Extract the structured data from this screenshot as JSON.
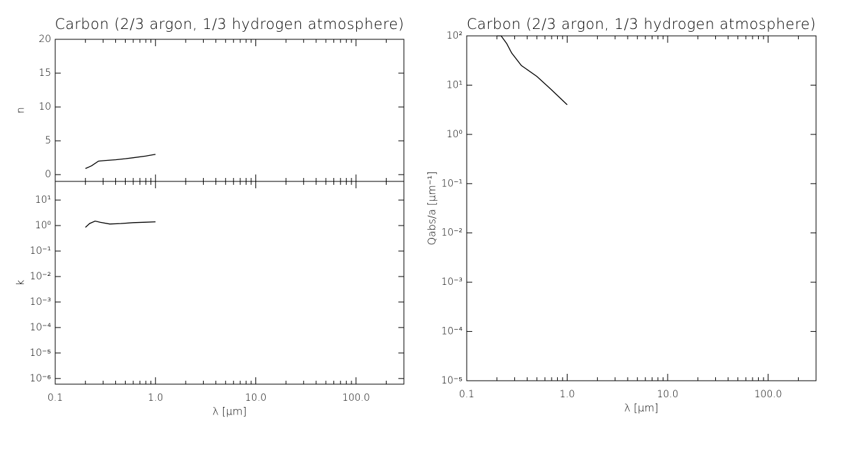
{
  "chart_data": [
    {
      "type": "line",
      "title": "Carbon (2/3 argon, 1/3 hydrogen atmosphere)",
      "ylabel": "n",
      "xscale": "log",
      "yscale": "linear",
      "xlim": [
        0.1,
        300
      ],
      "ylim": [
        -1,
        20
      ],
      "yticks": [
        0,
        5,
        10,
        15,
        20
      ],
      "color": "#000000",
      "x": [
        0.2,
        0.23,
        0.27,
        0.32,
        0.4,
        0.5,
        0.6,
        0.8,
        1.0
      ],
      "values": [
        0.9,
        1.3,
        2.0,
        2.1,
        2.2,
        2.35,
        2.5,
        2.75,
        3.0
      ]
    },
    {
      "type": "line",
      "xlabel": "λ [μm]",
      "ylabel": "k",
      "xscale": "log",
      "yscale": "log",
      "xlim": [
        0.1,
        300
      ],
      "ylim": [
        6e-07,
        54
      ],
      "xticks": [
        {
          "value": 0.1,
          "label": "0.1"
        },
        {
          "value": 1,
          "label": "1.0"
        },
        {
          "value": 10,
          "label": "10.0"
        },
        {
          "value": 100,
          "label": "100.0"
        }
      ],
      "xminorticks": [
        0.2,
        0.3,
        0.4,
        0.5,
        0.6,
        0.7,
        0.8,
        0.9,
        2,
        3,
        4,
        5,
        6,
        7,
        8,
        9,
        20,
        30,
        40,
        50,
        60,
        70,
        80,
        90,
        200,
        300
      ],
      "yticks": [
        {
          "value": 1e-06,
          "label": "10⁻⁶"
        },
        {
          "value": 1e-05,
          "label": "10⁻⁵"
        },
        {
          "value": 0.0001,
          "label": "10⁻⁴"
        },
        {
          "value": 0.001,
          "label": "10⁻³"
        },
        {
          "value": 0.01,
          "label": "10⁻²"
        },
        {
          "value": 0.1,
          "label": "10⁻¹"
        },
        {
          "value": 1,
          "label": "10⁰"
        },
        {
          "value": 10,
          "label": "10¹"
        }
      ],
      "color": "#000000",
      "x": [
        0.2,
        0.22,
        0.25,
        0.28,
        0.35,
        0.45,
        0.6,
        0.8,
        1.0
      ],
      "values": [
        0.85,
        1.2,
        1.5,
        1.35,
        1.15,
        1.2,
        1.3,
        1.35,
        1.4
      ]
    },
    {
      "type": "line",
      "title": "Carbon (2/3 argon, 1/3 hydrogen atmosphere)",
      "xlabel": "λ [μm]",
      "ylabel": "Qabs/a [μm⁻¹]",
      "xscale": "log",
      "yscale": "log",
      "xlim": [
        0.1,
        300
      ],
      "ylim": [
        1e-05,
        100
      ],
      "xticks": [
        {
          "value": 0.1,
          "label": "0.1"
        },
        {
          "value": 1,
          "label": "1.0"
        },
        {
          "value": 10,
          "label": "10.0"
        },
        {
          "value": 100,
          "label": "100.0"
        }
      ],
      "xminorticks": [
        0.2,
        0.3,
        0.4,
        0.5,
        0.6,
        0.7,
        0.8,
        0.9,
        2,
        3,
        4,
        5,
        6,
        7,
        8,
        9,
        20,
        30,
        40,
        50,
        60,
        70,
        80,
        90,
        200,
        300
      ],
      "yticks": [
        {
          "value": 1e-05,
          "label": "10⁻⁵"
        },
        {
          "value": 0.0001,
          "label": "10⁻⁴"
        },
        {
          "value": 0.001,
          "label": "10⁻³"
        },
        {
          "value": 0.01,
          "label": "10⁻²"
        },
        {
          "value": 0.1,
          "label": "10⁻¹"
        },
        {
          "value": 1,
          "label": "10⁰"
        },
        {
          "value": 10,
          "label": "10¹"
        },
        {
          "value": 100,
          "label": "10²"
        }
      ],
      "color": "#000000",
      "x": [
        0.2,
        0.22,
        0.25,
        0.28,
        0.35,
        0.5,
        0.7,
        1.0
      ],
      "values": [
        100,
        100,
        70,
        45,
        25,
        15,
        8,
        4
      ]
    }
  ]
}
